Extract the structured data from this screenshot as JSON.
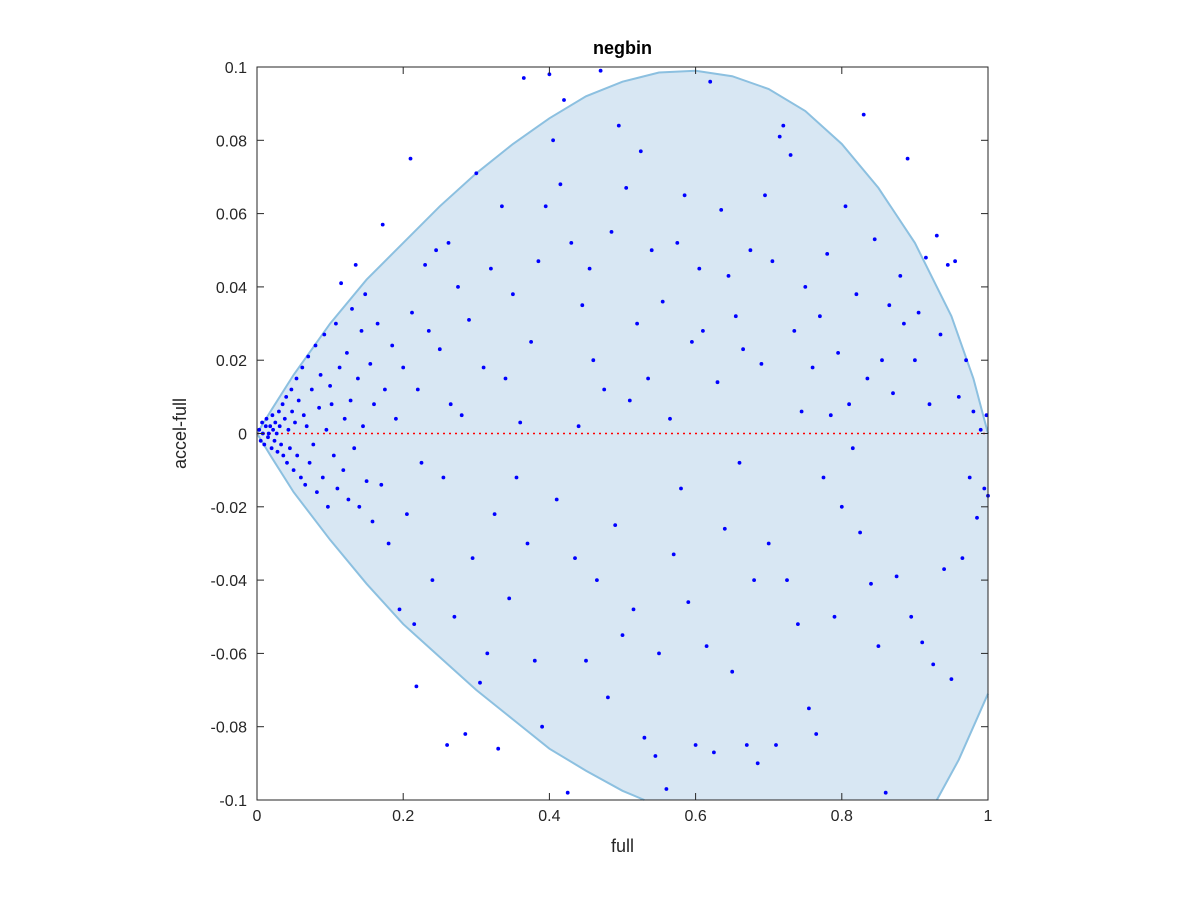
{
  "chart_data": {
    "type": "scatter",
    "title": "negbin",
    "xlabel": "full",
    "ylabel": "accel-full",
    "xlim": [
      0,
      1
    ],
    "ylim": [
      -0.1,
      0.1
    ],
    "x_ticks": [
      0,
      0.2,
      0.4,
      0.6,
      0.8,
      1
    ],
    "x_tick_labels": [
      "0",
      "0.2",
      "0.4",
      "0.6",
      "0.8",
      "1"
    ],
    "y_ticks": [
      -0.1,
      -0.08,
      -0.06,
      -0.04,
      -0.02,
      0,
      0.02,
      0.04,
      0.06,
      0.08,
      0.1
    ],
    "y_tick_labels": [
      "-0.1",
      "-0.08",
      "-0.06",
      "-0.04",
      "-0.02",
      "0",
      "0.02",
      "0.04",
      "0.06",
      "0.08",
      "0.1"
    ],
    "grid": false,
    "region": {
      "upper": [
        [
          0,
          0
        ],
        [
          0.02,
          0.0065
        ],
        [
          0.05,
          0.016
        ],
        [
          0.1,
          0.03
        ],
        [
          0.15,
          0.042
        ],
        [
          0.2,
          0.052
        ],
        [
          0.25,
          0.062
        ],
        [
          0.3,
          0.071
        ],
        [
          0.35,
          0.079
        ],
        [
          0.4,
          0.086
        ],
        [
          0.45,
          0.092
        ],
        [
          0.5,
          0.096
        ],
        [
          0.55,
          0.0985
        ],
        [
          0.6,
          0.099
        ],
        [
          0.65,
          0.0975
        ],
        [
          0.7,
          0.094
        ],
        [
          0.75,
          0.088
        ],
        [
          0.8,
          0.079
        ],
        [
          0.85,
          0.067
        ],
        [
          0.9,
          0.052
        ],
        [
          0.95,
          0.032
        ],
        [
          0.98,
          0.015
        ],
        [
          1,
          0
        ]
      ],
      "lower": [
        [
          0,
          0
        ],
        [
          0.02,
          -0.0065
        ],
        [
          0.05,
          -0.016
        ],
        [
          0.1,
          -0.029
        ],
        [
          0.15,
          -0.041
        ],
        [
          0.2,
          -0.052
        ],
        [
          0.25,
          -0.061
        ],
        [
          0.3,
          -0.07
        ],
        [
          0.35,
          -0.078
        ],
        [
          0.4,
          -0.086
        ],
        [
          0.45,
          -0.092
        ],
        [
          0.5,
          -0.0975
        ],
        [
          0.53,
          -0.1
        ]
      ],
      "lower_right": [
        [
          0.93,
          -0.1
        ],
        [
          0.96,
          -0.089
        ],
        [
          0.98,
          -0.08
        ],
        [
          1,
          -0.071
        ]
      ]
    },
    "reference_line": {
      "y": 0,
      "style": "dotted",
      "color": "#ff0000"
    },
    "series": [
      {
        "color": "#0000ff",
        "points": [
          [
            0.003,
            0.001
          ],
          [
            0.005,
            -0.002
          ],
          [
            0.007,
            0.003
          ],
          [
            0.008,
            0.0
          ],
          [
            0.01,
            -0.003
          ],
          [
            0.012,
            0.002
          ],
          [
            0.013,
            0.004
          ],
          [
            0.015,
            -0.001
          ],
          [
            0.016,
            0.0
          ],
          [
            0.018,
            0.002
          ],
          [
            0.02,
            -0.004
          ],
          [
            0.021,
            0.005
          ],
          [
            0.022,
            0.001
          ],
          [
            0.024,
            -0.002
          ],
          [
            0.025,
            0.003
          ],
          [
            0.027,
            0.0
          ],
          [
            0.028,
            -0.005
          ],
          [
            0.03,
            0.006
          ],
          [
            0.031,
            0.002
          ],
          [
            0.033,
            -0.003
          ],
          [
            0.035,
            0.008
          ],
          [
            0.036,
            -0.006
          ],
          [
            0.038,
            0.004
          ],
          [
            0.04,
            0.01
          ],
          [
            0.041,
            -0.008
          ],
          [
            0.043,
            0.001
          ],
          [
            0.045,
            -0.004
          ],
          [
            0.047,
            0.012
          ],
          [
            0.048,
            0.006
          ],
          [
            0.05,
            -0.01
          ],
          [
            0.052,
            0.003
          ],
          [
            0.054,
            0.015
          ],
          [
            0.055,
            -0.006
          ],
          [
            0.057,
            0.009
          ],
          [
            0.06,
            -0.012
          ],
          [
            0.062,
            0.018
          ],
          [
            0.064,
            0.005
          ],
          [
            0.066,
            -0.014
          ],
          [
            0.068,
            0.002
          ],
          [
            0.07,
            0.021
          ],
          [
            0.072,
            -0.008
          ],
          [
            0.075,
            0.012
          ],
          [
            0.077,
            -0.003
          ],
          [
            0.08,
            0.024
          ],
          [
            0.082,
            -0.016
          ],
          [
            0.085,
            0.007
          ],
          [
            0.087,
            0.016
          ],
          [
            0.09,
            -0.012
          ],
          [
            0.092,
            0.027
          ],
          [
            0.095,
            0.001
          ],
          [
            0.097,
            -0.02
          ],
          [
            0.1,
            0.013
          ],
          [
            0.102,
            0.008
          ],
          [
            0.105,
            -0.006
          ],
          [
            0.108,
            0.03
          ],
          [
            0.11,
            -0.015
          ],
          [
            0.113,
            0.018
          ],
          [
            0.115,
            0.041
          ],
          [
            0.118,
            -0.01
          ],
          [
            0.12,
            0.004
          ],
          [
            0.123,
            0.022
          ],
          [
            0.125,
            -0.018
          ],
          [
            0.128,
            0.009
          ],
          [
            0.13,
            0.034
          ],
          [
            0.133,
            -0.004
          ],
          [
            0.135,
            0.046
          ],
          [
            0.138,
            0.015
          ],
          [
            0.14,
            -0.02
          ],
          [
            0.143,
            0.028
          ],
          [
            0.145,
            0.002
          ],
          [
            0.148,
            0.038
          ],
          [
            0.15,
            -0.013
          ],
          [
            0.155,
            0.019
          ],
          [
            0.158,
            -0.024
          ],
          [
            0.16,
            0.008
          ],
          [
            0.165,
            0.03
          ],
          [
            0.17,
            -0.014
          ],
          [
            0.172,
            0.057
          ],
          [
            0.175,
            0.012
          ],
          [
            0.18,
            -0.03
          ],
          [
            0.185,
            0.024
          ],
          [
            0.19,
            0.004
          ],
          [
            0.195,
            -0.048
          ],
          [
            0.2,
            0.018
          ],
          [
            0.205,
            -0.022
          ],
          [
            0.21,
            0.075
          ],
          [
            0.212,
            0.033
          ],
          [
            0.215,
            -0.052
          ],
          [
            0.218,
            -0.069
          ],
          [
            0.22,
            0.012
          ],
          [
            0.225,
            -0.008
          ],
          [
            0.23,
            0.046
          ],
          [
            0.235,
            0.028
          ],
          [
            0.24,
            -0.04
          ],
          [
            0.245,
            0.05
          ],
          [
            0.25,
            0.023
          ],
          [
            0.255,
            -0.012
          ],
          [
            0.26,
            -0.085
          ],
          [
            0.262,
            0.052
          ],
          [
            0.265,
            0.008
          ],
          [
            0.27,
            -0.05
          ],
          [
            0.275,
            0.04
          ],
          [
            0.28,
            0.005
          ],
          [
            0.285,
            -0.082
          ],
          [
            0.29,
            0.031
          ],
          [
            0.295,
            -0.034
          ],
          [
            0.3,
            0.071
          ],
          [
            0.305,
            -0.068
          ],
          [
            0.31,
            0.018
          ],
          [
            0.315,
            -0.06
          ],
          [
            0.32,
            0.045
          ],
          [
            0.325,
            -0.022
          ],
          [
            0.33,
            -0.086
          ],
          [
            0.335,
            0.062
          ],
          [
            0.34,
            0.015
          ],
          [
            0.345,
            -0.045
          ],
          [
            0.35,
            0.038
          ],
          [
            0.355,
            -0.012
          ],
          [
            0.36,
            0.003
          ],
          [
            0.365,
            0.097
          ],
          [
            0.37,
            -0.03
          ],
          [
            0.375,
            0.025
          ],
          [
            0.38,
            -0.062
          ],
          [
            0.385,
            0.047
          ],
          [
            0.39,
            -0.08
          ],
          [
            0.395,
            0.062
          ],
          [
            0.4,
            0.098
          ],
          [
            0.405,
            0.08
          ],
          [
            0.41,
            -0.018
          ],
          [
            0.415,
            0.068
          ],
          [
            0.42,
            0.091
          ],
          [
            0.425,
            -0.098
          ],
          [
            0.43,
            0.052
          ],
          [
            0.435,
            -0.034
          ],
          [
            0.44,
            0.002
          ],
          [
            0.445,
            0.035
          ],
          [
            0.45,
            -0.062
          ],
          [
            0.455,
            0.045
          ],
          [
            0.46,
            0.02
          ],
          [
            0.465,
            -0.04
          ],
          [
            0.47,
            0.099
          ],
          [
            0.475,
            0.012
          ],
          [
            0.48,
            -0.072
          ],
          [
            0.485,
            0.055
          ],
          [
            0.49,
            -0.025
          ],
          [
            0.495,
            0.084
          ],
          [
            0.5,
            -0.055
          ],
          [
            0.505,
            0.067
          ],
          [
            0.51,
            0.009
          ],
          [
            0.515,
            -0.048
          ],
          [
            0.52,
            0.03
          ],
          [
            0.525,
            0.077
          ],
          [
            0.53,
            -0.083
          ],
          [
            0.535,
            0.015
          ],
          [
            0.54,
            0.05
          ],
          [
            0.545,
            -0.088
          ],
          [
            0.55,
            -0.06
          ],
          [
            0.555,
            0.036
          ],
          [
            0.56,
            -0.097
          ],
          [
            0.565,
            0.004
          ],
          [
            0.57,
            -0.033
          ],
          [
            0.575,
            0.052
          ],
          [
            0.58,
            -0.015
          ],
          [
            0.585,
            0.065
          ],
          [
            0.59,
            -0.046
          ],
          [
            0.595,
            0.025
          ],
          [
            0.6,
            -0.085
          ],
          [
            0.605,
            0.045
          ],
          [
            0.61,
            0.028
          ],
          [
            0.615,
            -0.058
          ],
          [
            0.62,
            0.096
          ],
          [
            0.625,
            -0.087
          ],
          [
            0.63,
            0.014
          ],
          [
            0.635,
            0.061
          ],
          [
            0.64,
            -0.026
          ],
          [
            0.645,
            0.043
          ],
          [
            0.65,
            -0.065
          ],
          [
            0.655,
            0.032
          ],
          [
            0.66,
            -0.008
          ],
          [
            0.665,
            0.023
          ],
          [
            0.67,
            -0.085
          ],
          [
            0.675,
            0.05
          ],
          [
            0.68,
            -0.04
          ],
          [
            0.685,
            -0.09
          ],
          [
            0.69,
            0.019
          ],
          [
            0.695,
            0.065
          ],
          [
            0.7,
            -0.03
          ],
          [
            0.705,
            0.047
          ],
          [
            0.71,
            -0.085
          ],
          [
            0.715,
            0.081
          ],
          [
            0.72,
            0.084
          ],
          [
            0.725,
            -0.04
          ],
          [
            0.73,
            0.076
          ],
          [
            0.735,
            0.028
          ],
          [
            0.74,
            -0.052
          ],
          [
            0.745,
            0.006
          ],
          [
            0.75,
            0.04
          ],
          [
            0.755,
            -0.075
          ],
          [
            0.76,
            0.018
          ],
          [
            0.765,
            -0.082
          ],
          [
            0.77,
            0.032
          ],
          [
            0.775,
            -0.012
          ],
          [
            0.78,
            0.049
          ],
          [
            0.785,
            0.005
          ],
          [
            0.79,
            -0.05
          ],
          [
            0.795,
            0.022
          ],
          [
            0.8,
            -0.02
          ],
          [
            0.805,
            0.062
          ],
          [
            0.81,
            0.008
          ],
          [
            0.815,
            -0.004
          ],
          [
            0.82,
            0.038
          ],
          [
            0.825,
            -0.027
          ],
          [
            0.83,
            0.087
          ],
          [
            0.835,
            0.015
          ],
          [
            0.84,
            -0.041
          ],
          [
            0.845,
            0.053
          ],
          [
            0.85,
            -0.058
          ],
          [
            0.855,
            0.02
          ],
          [
            0.86,
            -0.098
          ],
          [
            0.865,
            0.035
          ],
          [
            0.87,
            0.011
          ],
          [
            0.875,
            -0.039
          ],
          [
            0.88,
            0.043
          ],
          [
            0.885,
            0.03
          ],
          [
            0.89,
            0.075
          ],
          [
            0.895,
            -0.05
          ],
          [
            0.9,
            0.02
          ],
          [
            0.905,
            0.033
          ],
          [
            0.91,
            -0.057
          ],
          [
            0.915,
            0.048
          ],
          [
            0.92,
            0.008
          ],
          [
            0.925,
            -0.063
          ],
          [
            0.93,
            0.054
          ],
          [
            0.935,
            0.027
          ],
          [
            0.94,
            -0.037
          ],
          [
            0.945,
            0.046
          ],
          [
            0.95,
            -0.067
          ],
          [
            0.955,
            0.047
          ],
          [
            0.96,
            0.01
          ],
          [
            0.965,
            -0.034
          ],
          [
            0.97,
            0.02
          ],
          [
            0.975,
            -0.012
          ],
          [
            0.98,
            0.006
          ],
          [
            0.985,
            -0.023
          ],
          [
            0.99,
            0.001
          ],
          [
            0.995,
            -0.015
          ],
          [
            0.998,
            0.005
          ],
          [
            1.0,
            -0.017
          ]
        ]
      }
    ]
  }
}
